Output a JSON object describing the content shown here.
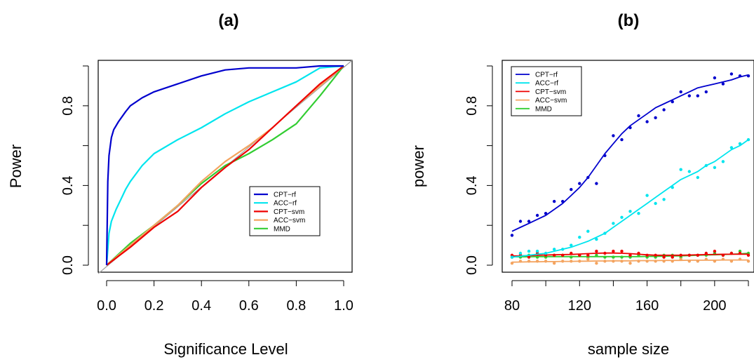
{
  "chart_data": [
    {
      "type": "line",
      "title": "(a)",
      "xlabel": "Significance Level",
      "ylabel": "Power",
      "xlim": [
        0.0,
        1.0
      ],
      "ylim": [
        0.0,
        1.0
      ],
      "xticks": [
        "0.0",
        "0.2",
        "0.4",
        "0.6",
        "0.8",
        "1.0"
      ],
      "yticks": [
        "0.0",
        "0.4",
        "0.8"
      ],
      "legend_position": "bottom-right",
      "reference_line": "diagonal y = x",
      "series": [
        {
          "name": "CPT−rf",
          "color": "#0000cd",
          "x": [
            0,
            0.005,
            0.01,
            0.02,
            0.03,
            0.05,
            0.08,
            0.1,
            0.15,
            0.2,
            0.3,
            0.4,
            0.5,
            0.6,
            0.7,
            0.8,
            0.9,
            1.0
          ],
          "y": [
            0,
            0.42,
            0.55,
            0.64,
            0.68,
            0.72,
            0.77,
            0.8,
            0.84,
            0.87,
            0.91,
            0.95,
            0.98,
            0.99,
            0.99,
            0.99,
            1.0,
            1.0
          ]
        },
        {
          "name": "ACC−rf",
          "color": "#00e5ee",
          "x": [
            0,
            0.01,
            0.02,
            0.04,
            0.06,
            0.08,
            0.1,
            0.15,
            0.2,
            0.3,
            0.4,
            0.5,
            0.6,
            0.7,
            0.8,
            0.9,
            1.0
          ],
          "y": [
            0,
            0.16,
            0.22,
            0.28,
            0.33,
            0.38,
            0.42,
            0.5,
            0.56,
            0.63,
            0.69,
            0.76,
            0.82,
            0.87,
            0.92,
            0.99,
            1.0
          ]
        },
        {
          "name": "CPT−svm",
          "color": "#ee0000",
          "x": [
            0,
            0.1,
            0.2,
            0.3,
            0.4,
            0.5,
            0.6,
            0.7,
            0.8,
            0.9,
            1.0
          ],
          "y": [
            0,
            0.09,
            0.19,
            0.27,
            0.39,
            0.49,
            0.58,
            0.69,
            0.8,
            0.91,
            1.0
          ]
        },
        {
          "name": "ACC−svm",
          "color": "#f4a460",
          "x": [
            0,
            0.1,
            0.2,
            0.3,
            0.4,
            0.5,
            0.6,
            0.7,
            0.8,
            0.9,
            1.0
          ],
          "y": [
            0,
            0.1,
            0.2,
            0.3,
            0.42,
            0.52,
            0.6,
            0.69,
            0.8,
            0.9,
            1.0
          ]
        },
        {
          "name": "MMD",
          "color": "#32cd32",
          "x": [
            0,
            0.1,
            0.2,
            0.3,
            0.4,
            0.5,
            0.6,
            0.7,
            0.8,
            0.9,
            1.0
          ],
          "y": [
            0,
            0.11,
            0.2,
            0.3,
            0.41,
            0.5,
            0.56,
            0.63,
            0.71,
            0.85,
            1.0
          ]
        }
      ]
    },
    {
      "type": "scatter",
      "title": "(b)",
      "xlabel": "sample size",
      "ylabel": "power",
      "xlim": [
        80,
        220
      ],
      "ylim": [
        0.0,
        1.0
      ],
      "xticks": [
        "80",
        "120",
        "160",
        "200"
      ],
      "yticks": [
        "0.0",
        "0.4",
        "0.8"
      ],
      "legend_position": "top-left",
      "fitted_curves": true,
      "x": [
        80,
        85,
        90,
        95,
        100,
        105,
        110,
        115,
        120,
        125,
        130,
        135,
        140,
        145,
        150,
        155,
        160,
        165,
        170,
        175,
        180,
        185,
        190,
        195,
        200,
        205,
        210,
        215,
        220
      ],
      "series": [
        {
          "name": "CPT−rf",
          "color": "#0000cd",
          "points": [
            0.15,
            0.22,
            0.22,
            0.25,
            0.26,
            0.32,
            0.32,
            0.38,
            0.41,
            0.44,
            0.41,
            0.55,
            0.65,
            0.63,
            0.69,
            0.75,
            0.72,
            0.74,
            0.78,
            0.82,
            0.87,
            0.85,
            0.85,
            0.87,
            0.94,
            0.91,
            0.96,
            0.95,
            0.95
          ],
          "fit": [
            0.17,
            0.19,
            0.21,
            0.23,
            0.25,
            0.28,
            0.31,
            0.35,
            0.39,
            0.44,
            0.5,
            0.56,
            0.61,
            0.66,
            0.7,
            0.73,
            0.76,
            0.79,
            0.81,
            0.83,
            0.85,
            0.87,
            0.89,
            0.9,
            0.91,
            0.92,
            0.93,
            0.945,
            0.955
          ]
        },
        {
          "name": "ACC−rf",
          "color": "#00e5ee",
          "points": [
            0.04,
            0.06,
            0.07,
            0.07,
            0.06,
            0.08,
            0.08,
            0.1,
            0.14,
            0.17,
            0.13,
            0.16,
            0.21,
            0.24,
            0.27,
            0.26,
            0.35,
            0.31,
            0.33,
            0.39,
            0.48,
            0.47,
            0.44,
            0.5,
            0.49,
            0.52,
            0.59,
            0.61,
            0.63
          ],
          "fit": [
            0.04,
            0.045,
            0.05,
            0.055,
            0.06,
            0.07,
            0.08,
            0.09,
            0.105,
            0.12,
            0.14,
            0.16,
            0.19,
            0.22,
            0.25,
            0.28,
            0.31,
            0.34,
            0.37,
            0.4,
            0.43,
            0.45,
            0.47,
            0.5,
            0.52,
            0.55,
            0.58,
            0.6,
            0.63
          ]
        },
        {
          "name": "CPT−svm",
          "color": "#ee0000",
          "points": [
            0.05,
            0.05,
            0.04,
            0.06,
            0.05,
            0.05,
            0.05,
            0.06,
            0.05,
            0.05,
            0.07,
            0.06,
            0.07,
            0.07,
            0.05,
            0.06,
            0.05,
            0.05,
            0.04,
            0.04,
            0.05,
            0.05,
            0.05,
            0.06,
            0.07,
            0.05,
            0.06,
            0.06,
            0.05
          ],
          "fit": [
            0.046,
            0.047,
            0.048,
            0.05,
            0.051,
            0.052,
            0.053,
            0.054,
            0.056,
            0.058,
            0.06,
            0.061,
            0.061,
            0.06,
            0.058,
            0.055,
            0.052,
            0.05,
            0.05,
            0.05,
            0.05,
            0.051,
            0.052,
            0.053,
            0.054,
            0.055,
            0.055,
            0.055,
            0.055
          ]
        },
        {
          "name": "ACC−svm",
          "color": "#f4a460",
          "points": [
            0.01,
            0.02,
            0.02,
            0.02,
            0.02,
            0.01,
            0.02,
            0.02,
            0.02,
            0.03,
            0.01,
            0.02,
            0.02,
            0.02,
            0.01,
            0.02,
            0.02,
            0.02,
            0.02,
            0.02,
            0.03,
            0.02,
            0.02,
            0.03,
            0.02,
            0.03,
            0.02,
            0.03,
            0.02
          ],
          "fit": [
            0.015,
            0.016,
            0.017,
            0.017,
            0.018,
            0.018,
            0.019,
            0.019,
            0.02,
            0.02,
            0.021,
            0.021,
            0.022,
            0.022,
            0.022,
            0.023,
            0.023,
            0.023,
            0.024,
            0.024,
            0.024,
            0.025,
            0.025,
            0.025,
            0.025,
            0.026,
            0.026,
            0.026,
            0.026
          ]
        },
        {
          "name": "MMD",
          "color": "#32cd32",
          "points": [
            0.04,
            0.04,
            0.05,
            0.04,
            0.04,
            0.05,
            0.05,
            0.04,
            0.05,
            0.04,
            0.05,
            0.04,
            0.04,
            0.04,
            0.04,
            0.05,
            0.04,
            0.04,
            0.05,
            0.05,
            0.04,
            0.05,
            0.05,
            0.05,
            0.06,
            0.05,
            0.06,
            0.07,
            0.06
          ],
          "fit": [
            0.042,
            0.042,
            0.042,
            0.043,
            0.043,
            0.043,
            0.043,
            0.043,
            0.043,
            0.043,
            0.043,
            0.043,
            0.043,
            0.043,
            0.043,
            0.043,
            0.044,
            0.044,
            0.045,
            0.046,
            0.047,
            0.048,
            0.05,
            0.051,
            0.052,
            0.053,
            0.055,
            0.057,
            0.06
          ]
        }
      ]
    }
  ]
}
